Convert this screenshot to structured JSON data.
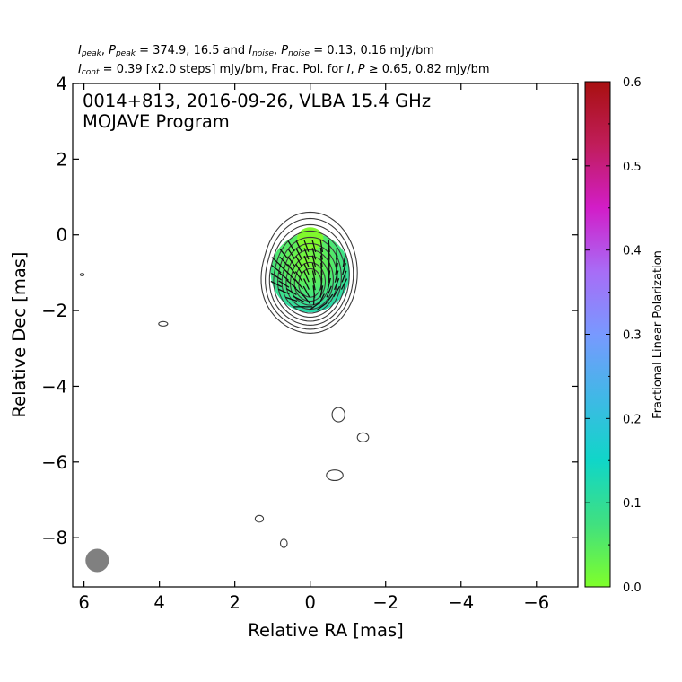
{
  "header": {
    "line1_a": "= 374.9, 16.5 and",
    "line1_b": "= 0.13, 0.16 mJy/bm",
    "line2_a": "= 0.39 [x2.0 steps] mJy/bm, Frac. Pol. for",
    "line2_b": "≥ 0.65, 0.82 mJy/bm",
    "sym_I": "I",
    "sym_P": "P",
    "sub_peak": "peak",
    "sub_noise": "noise",
    "sub_cont": "cont"
  },
  "chart_data": {
    "type": "contour",
    "title_line1": "0014+813, 2016-09-26, VLBA 15.4 GHz",
    "title_line2": "MOJAVE Program",
    "xlabel": "Relative RA [mas]",
    "ylabel": "Relative Dec [mas]",
    "xlim": [
      6.3,
      -7.1
    ],
    "ylim": [
      -9.3,
      4.0
    ],
    "xticks": [
      6,
      4,
      2,
      0,
      -2,
      -4,
      -6
    ],
    "xtick_labels": [
      "6",
      "4",
      "2",
      "0",
      "−2",
      "−4",
      "−6"
    ],
    "yticks": [
      4,
      2,
      0,
      -2,
      -4,
      -6,
      -8
    ],
    "ytick_labels": [
      "4",
      "2",
      "0",
      "−2",
      "−4",
      "−6",
      "−8"
    ],
    "colorbar": {
      "label": "Fractional Linear Polarization",
      "range": [
        0.0,
        0.6
      ],
      "ticks": [
        0.0,
        0.1,
        0.2,
        0.3,
        0.4,
        0.5,
        0.6
      ],
      "tick_labels": [
        "0.0",
        "0.1",
        "0.2",
        "0.3",
        "0.4",
        "0.5",
        "0.6"
      ],
      "colors": [
        "#7fff2a",
        "#40e080",
        "#10d6c8",
        "#40b8e6",
        "#7899ff",
        "#a86cf6",
        "#d21dc8",
        "#c01d5a",
        "#a81010"
      ]
    },
    "core_contours": {
      "center": [
        0,
        -1.0
      ],
      "count": 10,
      "outer_semi_axes": [
        1.25,
        1.6
      ]
    },
    "isolated_contours": [
      {
        "x": 6.05,
        "y": -1.05,
        "rx": 0.05,
        "ry": 0.03
      },
      {
        "x": 3.9,
        "y": -2.35,
        "rx": 0.12,
        "ry": 0.06
      },
      {
        "x": -0.75,
        "y": -4.75,
        "rx": 0.17,
        "ry": 0.19
      },
      {
        "x": -1.4,
        "y": -5.35,
        "rx": 0.15,
        "ry": 0.12
      },
      {
        "x": -0.65,
        "y": -6.35,
        "rx": 0.22,
        "ry": 0.14
      },
      {
        "x": 1.35,
        "y": -7.5,
        "rx": 0.11,
        "ry": 0.09
      },
      {
        "x": 0.7,
        "y": -8.15,
        "rx": 0.09,
        "ry": 0.11
      }
    ],
    "beam": {
      "x": 5.65,
      "y": -8.6,
      "major": 0.62,
      "minor": 0.62
    },
    "polarization_region": {
      "center": [
        0,
        -1.0
      ],
      "semi_axes": [
        1.05,
        1.05
      ],
      "frac_pol_min": 0.03,
      "frac_pol_max": 0.13
    }
  }
}
